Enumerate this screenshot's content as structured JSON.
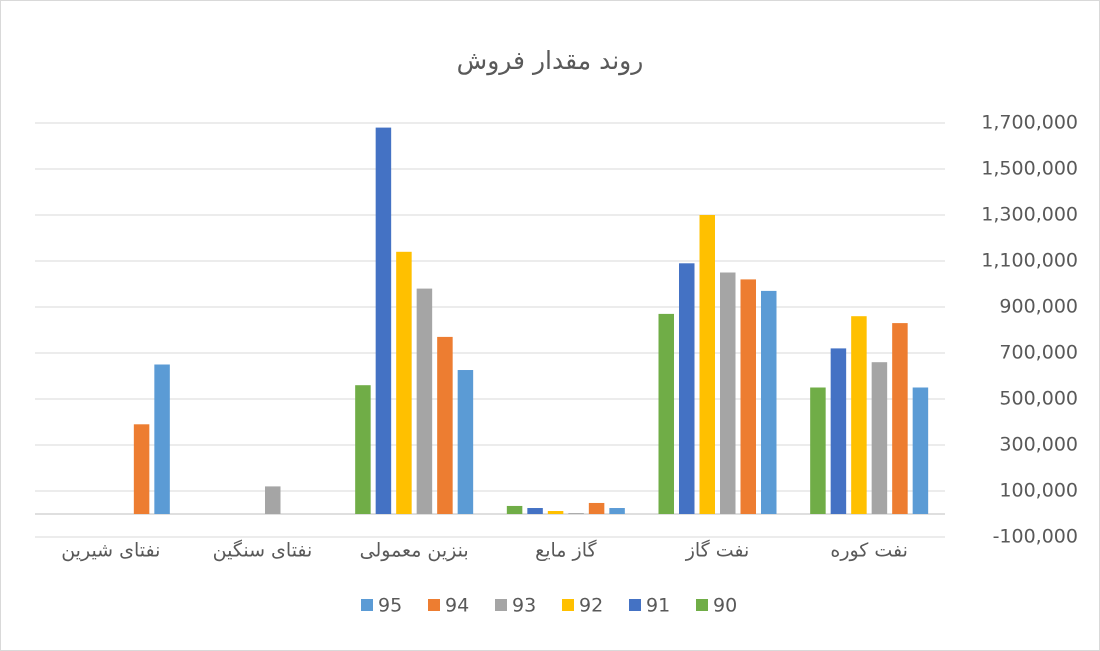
{
  "chart_data": {
    "type": "bar",
    "title": "روند مقدار فروش",
    "categories": [
      "نفت کوره",
      "نفت گاز",
      "گاز مایع",
      "بنزین معمولی",
      "نفتای سنگین",
      "نفتای شیرین"
    ],
    "series": [
      {
        "name": "90",
        "color": "#70ad47",
        "values": [
          550000,
          870000,
          35000,
          560000,
          null,
          null
        ]
      },
      {
        "name": "91",
        "color": "#4472c4",
        "values": [
          720000,
          1090000,
          26000,
          1680000,
          null,
          null
        ]
      },
      {
        "name": "92",
        "color": "#ffc000",
        "values": [
          860000,
          1300000,
          13000,
          1140000,
          null,
          null
        ]
      },
      {
        "name": "93",
        "color": "#a5a5a5",
        "values": [
          660000,
          1050000,
          4000,
          980000,
          120000,
          null
        ]
      },
      {
        "name": "94",
        "color": "#ed7d31",
        "values": [
          830000,
          1020000,
          48000,
          770000,
          null,
          390000
        ]
      },
      {
        "name": "95",
        "color": "#5b9bd5",
        "values": [
          550000,
          970000,
          26000,
          626000,
          null,
          650000
        ]
      }
    ],
    "ylim": [
      -100000,
      1700000
    ],
    "yticks": [
      {
        "value": -100000,
        "label": "-100,000"
      },
      {
        "value": 100000,
        "label": "100,000"
      },
      {
        "value": 300000,
        "label": "300,000"
      },
      {
        "value": 500000,
        "label": "500,000"
      },
      {
        "value": 700000,
        "label": "700,000"
      },
      {
        "value": 900000,
        "label": "900,000"
      },
      {
        "value": 1100000,
        "label": "1,100,000"
      },
      {
        "value": 1300000,
        "label": "1,300,000"
      },
      {
        "value": 1500000,
        "label": "1,500,000"
      },
      {
        "value": 1700000,
        "label": "1,700,000"
      }
    ],
    "grid": true,
    "y_axis_side": "right",
    "category_direction": "rtl",
    "legend": "bottom"
  }
}
